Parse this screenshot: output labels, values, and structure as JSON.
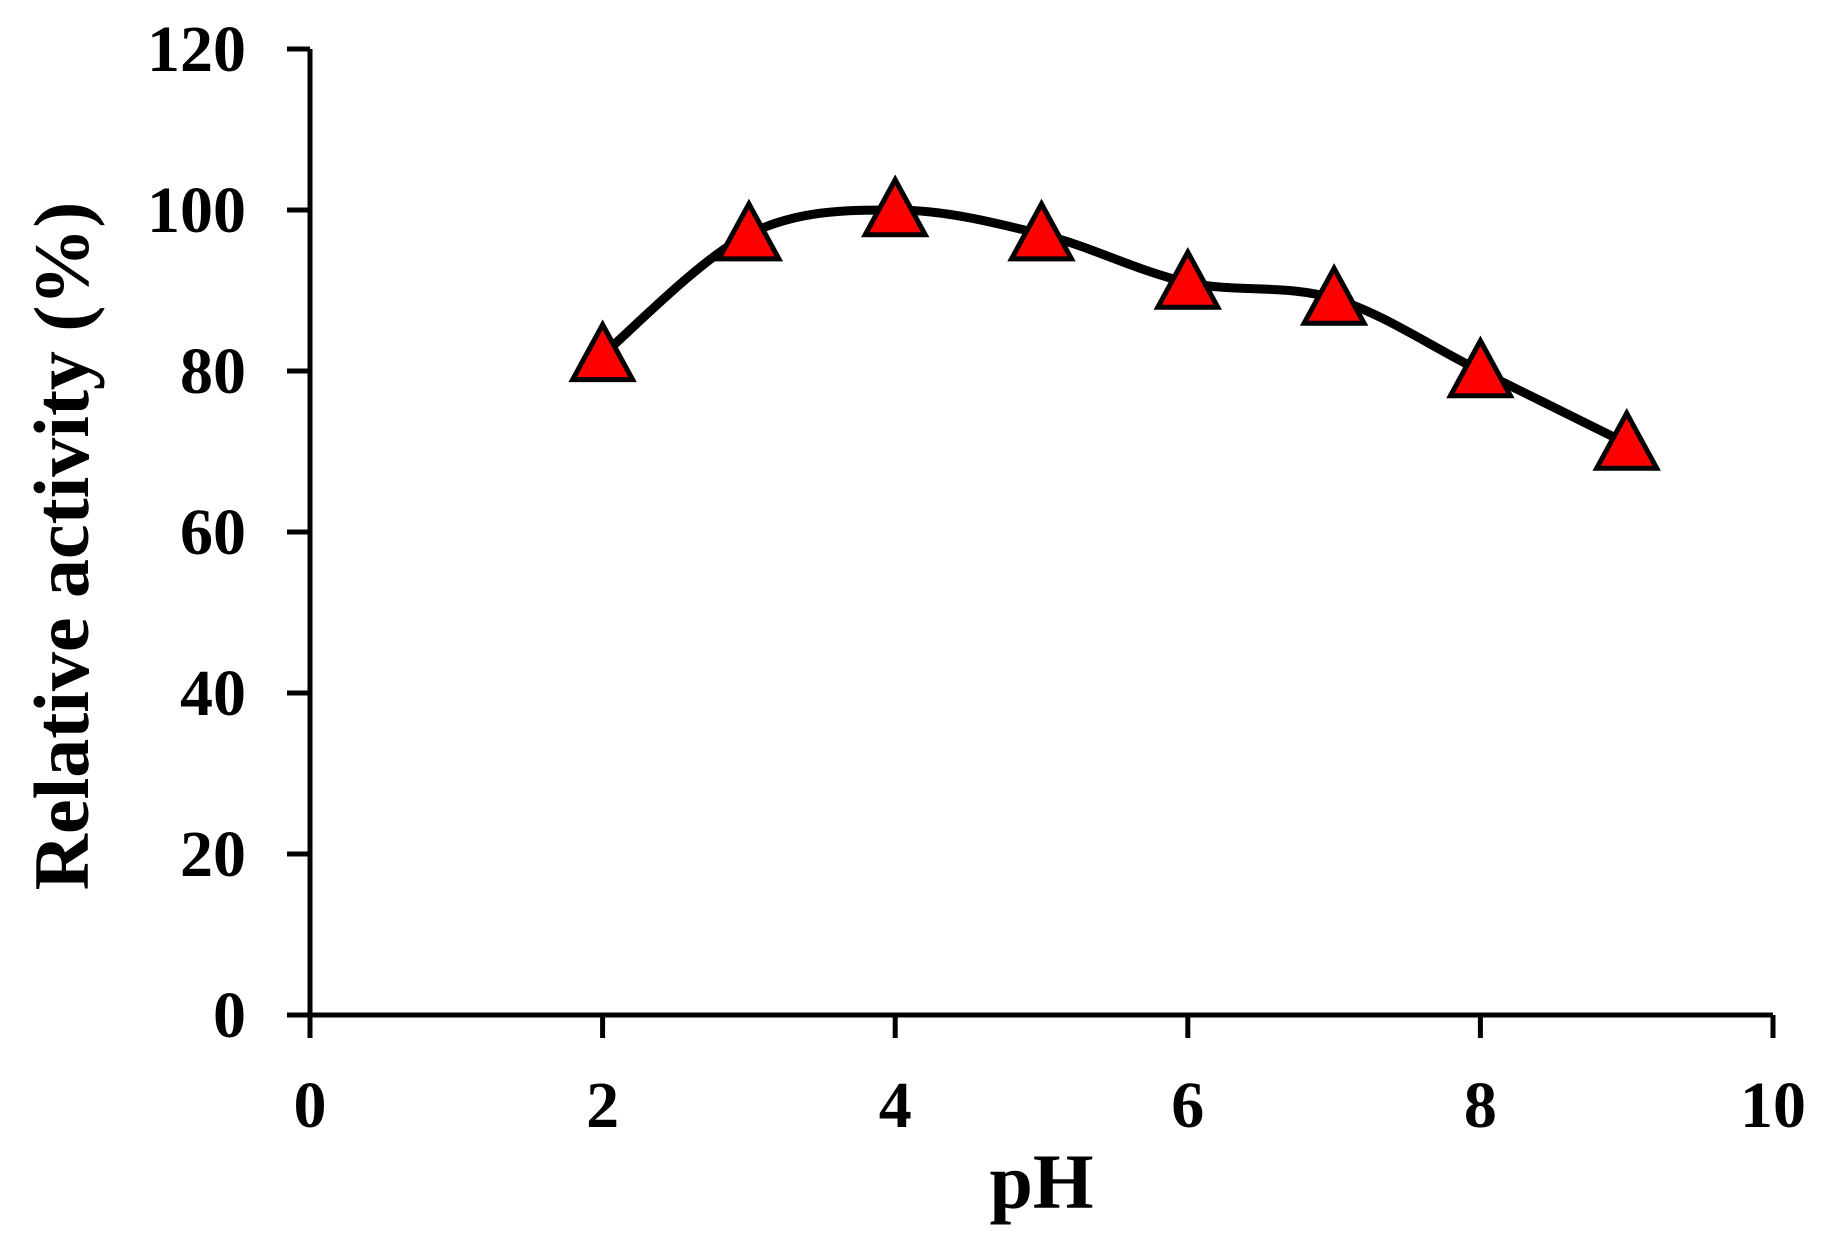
{
  "chart_data": {
    "type": "line",
    "title": "",
    "xlabel": "pH",
    "ylabel": "Relative activity (%)",
    "xlim": [
      0,
      10
    ],
    "ylim": [
      0,
      120
    ],
    "x_ticks": [
      0,
      2,
      4,
      6,
      8,
      10
    ],
    "y_ticks": [
      0,
      20,
      40,
      60,
      80,
      100,
      120
    ],
    "grid": false,
    "legend": "none",
    "smooth": true,
    "marker": "triangle",
    "colors": {
      "line": "#000000",
      "marker_fill": "#ff0000",
      "marker_stroke": "#000000",
      "axis": "#000000"
    },
    "series": [
      {
        "x": [
          2,
          3,
          4,
          5,
          6,
          7,
          8,
          9
        ],
        "y": [
          82,
          97,
          100,
          97,
          91,
          89,
          80,
          71
        ]
      }
    ]
  }
}
